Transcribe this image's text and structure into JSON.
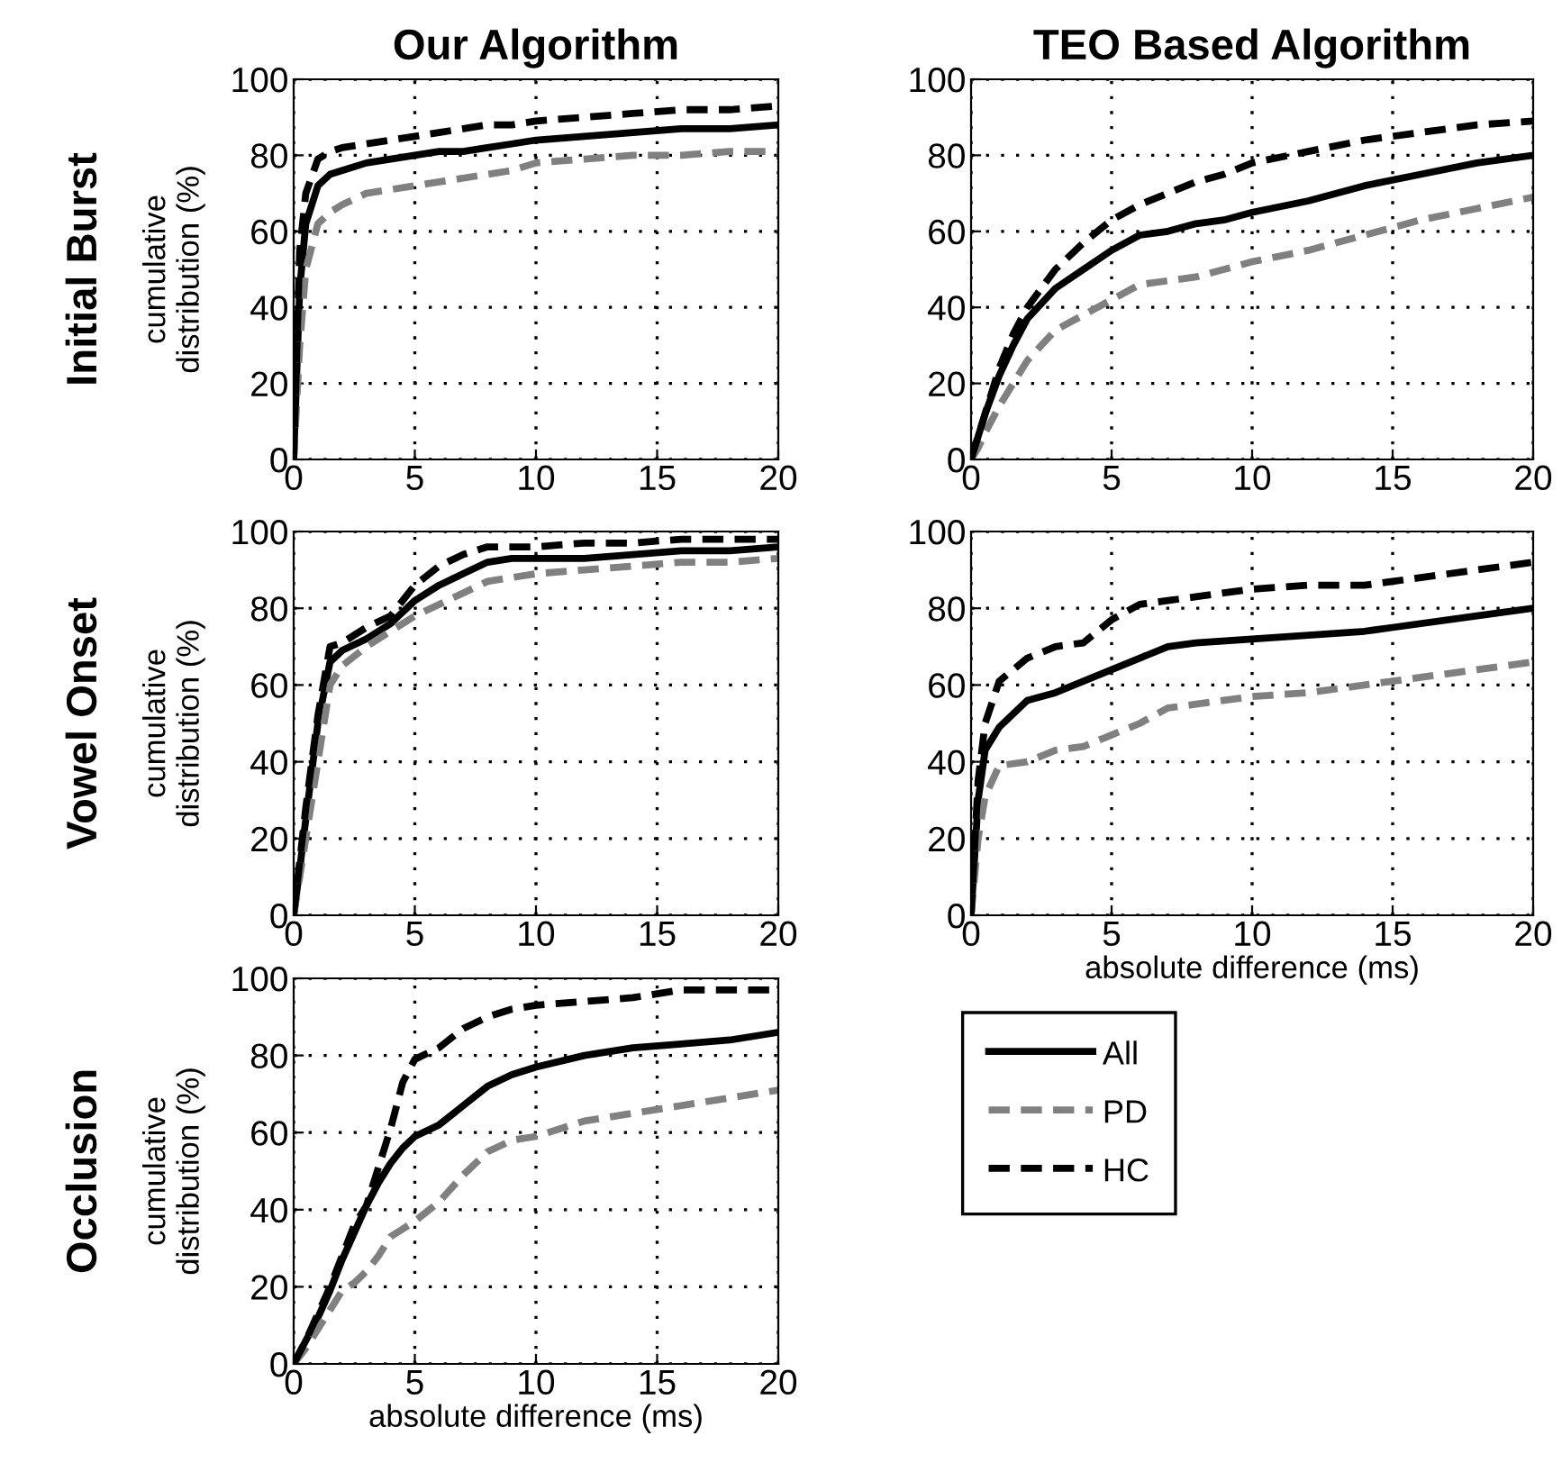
{
  "chart_data": [
    {
      "type": "line",
      "title": "Our Algorithm",
      "ylabel": "cumulative distribution (%)",
      "annotations": [
        "Initial Burst"
      ],
      "x": [
        0,
        0.25,
        0.5,
        1,
        1.5,
        2,
        3,
        4,
        5,
        6,
        7,
        8,
        9,
        10,
        12,
        14,
        16,
        18,
        20
      ],
      "xlim": [
        0,
        20
      ],
      "ylim": [
        0,
        100
      ],
      "xticks": [
        0,
        5,
        10,
        15,
        20
      ],
      "yticks": [
        0,
        20,
        40,
        60,
        80,
        100
      ],
      "grid": true,
      "series": [
        {
          "color": "#000000",
          "line_style": "solid",
          "values": [
            0,
            45,
            62,
            72,
            75,
            76,
            78,
            79,
            80,
            81,
            81,
            82,
            83,
            84,
            85,
            86,
            87,
            87,
            88
          ]
        },
        {
          "color": "#808080",
          "line_style": "dashed",
          "values": [
            0,
            30,
            50,
            62,
            65,
            67,
            70,
            71,
            72,
            73,
            74,
            75,
            76,
            78,
            79,
            80,
            80,
            81,
            81
          ]
        },
        {
          "color": "#000000",
          "line_style": "dashed",
          "values": [
            0,
            55,
            70,
            79,
            81,
            82,
            83,
            84,
            85,
            86,
            87,
            88,
            88,
            89,
            90,
            91,
            92,
            92,
            93
          ]
        }
      ]
    },
    {
      "type": "line",
      "title": "TEO Based Algorithm",
      "x": [
        0,
        0.25,
        0.5,
        1,
        1.5,
        2,
        3,
        4,
        5,
        6,
        7,
        8,
        9,
        10,
        12,
        14,
        16,
        18,
        20
      ],
      "xlim": [
        0,
        20
      ],
      "ylim": [
        0,
        100
      ],
      "xticks": [
        0,
        5,
        10,
        15,
        20
      ],
      "yticks": [
        0,
        20,
        40,
        60,
        80,
        100
      ],
      "grid": true,
      "series": [
        {
          "color": "#000000",
          "line_style": "solid",
          "values": [
            0,
            6,
            12,
            22,
            30,
            37,
            45,
            50,
            55,
            59,
            60,
            62,
            63,
            65,
            68,
            72,
            75,
            78,
            80
          ]
        },
        {
          "color": "#808080",
          "line_style": "dashed",
          "values": [
            0,
            3,
            7,
            14,
            20,
            26,
            34,
            38,
            42,
            46,
            47,
            48,
            50,
            52,
            55,
            59,
            63,
            66,
            69
          ]
        },
        {
          "color": "#000000",
          "line_style": "dashed",
          "values": [
            0,
            6,
            12,
            24,
            33,
            40,
            50,
            57,
            63,
            67,
            70,
            73,
            75,
            78,
            81,
            84,
            86,
            88,
            89
          ]
        }
      ]
    },
    {
      "type": "line",
      "ylabel": "cumulative distribution (%)",
      "annotations": [
        "Vowel Onset"
      ],
      "x": [
        0,
        0.25,
        0.5,
        1,
        1.5,
        2,
        3,
        4,
        5,
        6,
        7,
        8,
        9,
        10,
        12,
        14,
        16,
        18,
        20
      ],
      "xlim": [
        0,
        20
      ],
      "ylim": [
        0,
        100
      ],
      "xticks": [
        0,
        5,
        10,
        15,
        20
      ],
      "yticks": [
        0,
        20,
        40,
        60,
        80,
        100
      ],
      "grid": true,
      "series": [
        {
          "color": "#000000",
          "line_style": "solid",
          "values": [
            0,
            12,
            25,
            50,
            66,
            69,
            72,
            76,
            82,
            86,
            89,
            92,
            93,
            93,
            93,
            94,
            95,
            95,
            96
          ]
        },
        {
          "color": "#808080",
          "line_style": "dashed",
          "values": [
            0,
            10,
            20,
            40,
            60,
            65,
            70,
            74,
            78,
            81,
            84,
            87,
            88,
            89,
            90,
            91,
            92,
            92,
            93
          ]
        },
        {
          "color": "#000000",
          "line_style": "dashed",
          "values": [
            0,
            14,
            28,
            52,
            70,
            71,
            75,
            78,
            86,
            91,
            94,
            96,
            96,
            96,
            97,
            97,
            98,
            98,
            98
          ]
        }
      ]
    },
    {
      "type": "line",
      "xlabel": "absolute difference (ms)",
      "x": [
        0,
        0.25,
        0.5,
        1,
        2,
        3,
        4,
        5,
        6,
        7,
        8,
        10,
        12,
        14,
        15,
        18,
        20
      ],
      "xlim": [
        0,
        20
      ],
      "ylim": [
        0,
        100
      ],
      "xticks": [
        0,
        5,
        10,
        15,
        20
      ],
      "yticks": [
        0,
        20,
        40,
        60,
        80,
        100
      ],
      "grid": true,
      "series": [
        {
          "color": "#000000",
          "line_style": "solid",
          "values": [
            0,
            30,
            43,
            49,
            56,
            58,
            61,
            64,
            67,
            70,
            71,
            72,
            73,
            74,
            75,
            78,
            80
          ]
        },
        {
          "color": "#808080",
          "line_style": "dashed",
          "values": [
            0,
            20,
            31,
            39,
            40,
            43,
            44,
            47,
            50,
            54,
            55,
            57,
            58,
            60,
            61,
            64,
            66
          ]
        },
        {
          "color": "#000000",
          "line_style": "dashed",
          "values": [
            0,
            35,
            50,
            61,
            67,
            70,
            71,
            77,
            81,
            82,
            83,
            85,
            86,
            86,
            87,
            90,
            92
          ]
        }
      ]
    },
    {
      "type": "line",
      "xlabel": "absolute difference (ms)",
      "ylabel": "cumulative distribution (%)",
      "annotations": [
        "Occlusion"
      ],
      "legend": "right",
      "x": [
        0,
        0.5,
        1,
        1.5,
        2,
        2.5,
        3,
        3.5,
        4,
        4.5,
        5,
        6,
        7,
        8,
        9,
        10,
        12,
        14,
        16,
        18,
        20
      ],
      "xlim": [
        0,
        20
      ],
      "ylim": [
        0,
        100
      ],
      "xticks": [
        0,
        5,
        10,
        15,
        20
      ],
      "yticks": [
        0,
        20,
        40,
        60,
        80,
        100
      ],
      "grid": true,
      "series": [
        {
          "name": "All",
          "color": "#000000",
          "line_style": "solid",
          "values": [
            0,
            6,
            12,
            19,
            27,
            34,
            41,
            47,
            52,
            56,
            59,
            62,
            67,
            72,
            75,
            77,
            80,
            82,
            83,
            84,
            86
          ]
        },
        {
          "name": "PD",
          "color": "#808080",
          "line_style": "dashed",
          "values": [
            0,
            4,
            9,
            14,
            19,
            21,
            24,
            28,
            33,
            35,
            37,
            42,
            49,
            55,
            58,
            59,
            63,
            65,
            67,
            69,
            71
          ]
        },
        {
          "name": "HC",
          "color": "#000000",
          "line_style": "dashed",
          "values": [
            0,
            6,
            13,
            20,
            28,
            36,
            41,
            51,
            61,
            73,
            79,
            82,
            87,
            90,
            92,
            93,
            94,
            95,
            97,
            97,
            97
          ]
        }
      ]
    }
  ]
}
